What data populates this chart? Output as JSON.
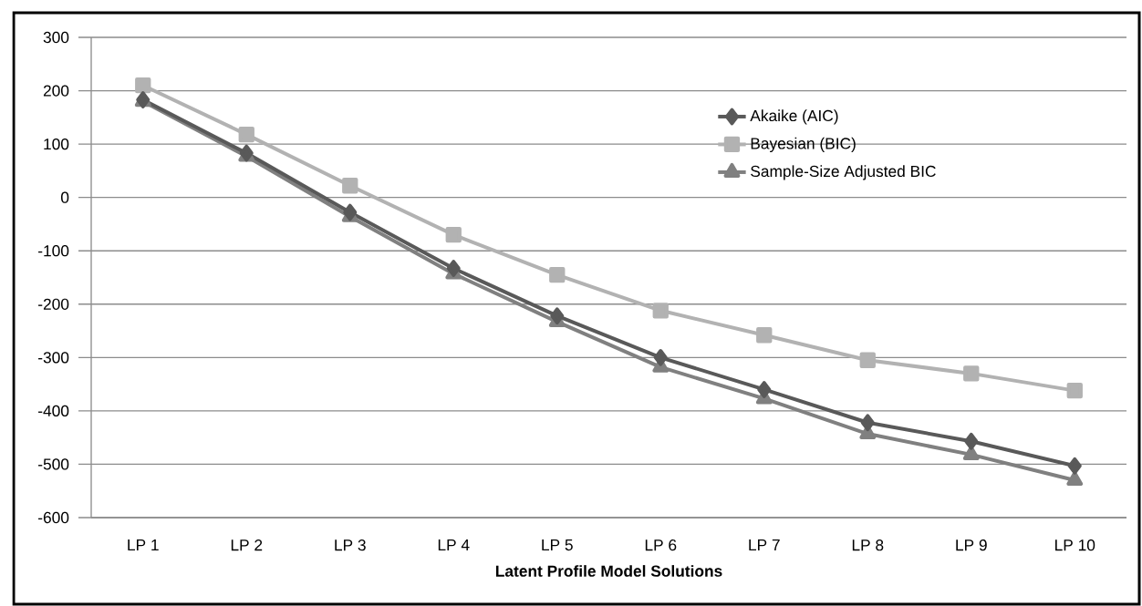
{
  "chart_data": {
    "type": "line",
    "xlabel": "Latent Profile Model Solutions",
    "categories": [
      "LP 1",
      "LP 2",
      "LP 3",
      "LP 4",
      "LP 5",
      "LP 6",
      "LP 7",
      "LP 8",
      "LP 9",
      "LP 10"
    ],
    "series": [
      {
        "name": "Akaike (AIC)",
        "color": "#595959",
        "marker": "diamond",
        "values": [
          183,
          83,
          -28,
          -133,
          -222,
          -300,
          -360,
          -422,
          -457,
          -503
        ]
      },
      {
        "name": "Bayesian (BIC)",
        "color": "#b2b2b2",
        "marker": "square",
        "values": [
          210,
          118,
          22,
          -70,
          -145,
          -212,
          -258,
          -305,
          -330,
          -362
        ]
      },
      {
        "name": "Sample-Size Adjusted BIC",
        "color": "#808080",
        "marker": "triangle",
        "values": [
          180,
          77,
          -36,
          -143,
          -233,
          -318,
          -377,
          -443,
          -482,
          -530
        ]
      }
    ],
    "ylim": [
      -600,
      300
    ],
    "yticks": [
      -600,
      -500,
      -400,
      -300,
      -200,
      -100,
      0,
      100,
      200,
      300
    ],
    "grid": "y",
    "legend": "top right",
    "line_style": "solid"
  }
}
